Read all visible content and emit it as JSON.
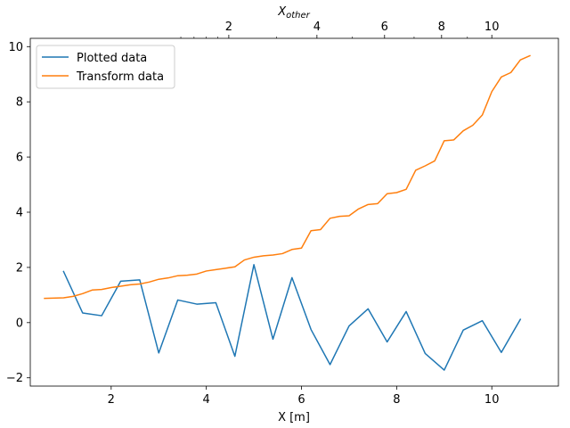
{
  "chart_data": {
    "type": "line",
    "xlabel": "X [m]",
    "ylabel": "",
    "secondary_xlabel_main": "X",
    "secondary_xlabel_sub": "other",
    "xlim": [
      0.3,
      11.4
    ],
    "ylim": [
      -2.3,
      10.3
    ],
    "x_ticks": [
      2,
      4,
      6,
      8,
      10
    ],
    "y_ticks": [
      -2,
      0,
      2,
      4,
      6,
      8,
      10
    ],
    "secondary_x_scale": "log",
    "secondary_x_ticks": [
      {
        "value": 2,
        "label": "2"
      },
      {
        "value": 4,
        "label": "4"
      },
      {
        "value": 6,
        "label": "6"
      },
      {
        "value": 8,
        "label": "8"
      },
      {
        "value": 10,
        "label": "10"
      }
    ],
    "secondary_x_minor_ticks": [
      1.2,
      1.4,
      1.6,
      1.8,
      3,
      5,
      7,
      9
    ],
    "legend_position": "top-left",
    "grid": false,
    "series": [
      {
        "name": "Plotted data",
        "color": "#1f77b4",
        "x": [
          1.0,
          1.4,
          1.8,
          2.2,
          2.6,
          3.0,
          3.4,
          3.8,
          4.2,
          4.6,
          5.0,
          5.4,
          5.8,
          6.2,
          6.6,
          7.0,
          7.4,
          7.8,
          8.2,
          8.6,
          9.0,
          9.4,
          9.8,
          10.2,
          10.6
        ],
        "y": [
          1.85,
          0.35,
          0.25,
          1.5,
          1.55,
          -1.1,
          0.82,
          0.67,
          0.72,
          -1.22,
          2.1,
          -0.6,
          1.63,
          -0.25,
          -1.52,
          -0.12,
          0.5,
          -0.7,
          0.4,
          -1.12,
          -1.72,
          -0.27,
          0.07,
          -1.08,
          0.12
        ]
      },
      {
        "name": "Transform data",
        "color": "#ff7f0e",
        "x": [
          0.6,
          1.0,
          1.2,
          1.4,
          1.6,
          1.8,
          2.0,
          2.2,
          2.4,
          2.6,
          2.8,
          3.0,
          3.2,
          3.4,
          3.6,
          3.8,
          4.0,
          4.2,
          4.4,
          4.6,
          4.8,
          5.0,
          5.2,
          5.4,
          5.6,
          5.8,
          6.0,
          6.2,
          6.4,
          6.6,
          6.8,
          7.0,
          7.2,
          7.4,
          7.6,
          7.8,
          8.0,
          8.2,
          8.4,
          8.6,
          8.8,
          9.0,
          9.2,
          9.4,
          9.6,
          9.8,
          10.0,
          10.2,
          10.4,
          10.6,
          10.8
        ],
        "y": [
          0.88,
          0.9,
          0.95,
          1.05,
          1.18,
          1.2,
          1.27,
          1.32,
          1.37,
          1.4,
          1.47,
          1.57,
          1.62,
          1.7,
          1.72,
          1.76,
          1.87,
          1.92,
          1.97,
          2.02,
          2.27,
          2.37,
          2.42,
          2.45,
          2.5,
          2.65,
          2.7,
          3.33,
          3.37,
          3.78,
          3.85,
          3.87,
          4.12,
          4.28,
          4.31,
          4.67,
          4.71,
          4.83,
          5.52,
          5.68,
          5.86,
          6.59,
          6.62,
          6.95,
          7.15,
          7.52,
          8.37,
          8.9,
          9.06,
          9.52,
          9.67
        ]
      }
    ]
  }
}
